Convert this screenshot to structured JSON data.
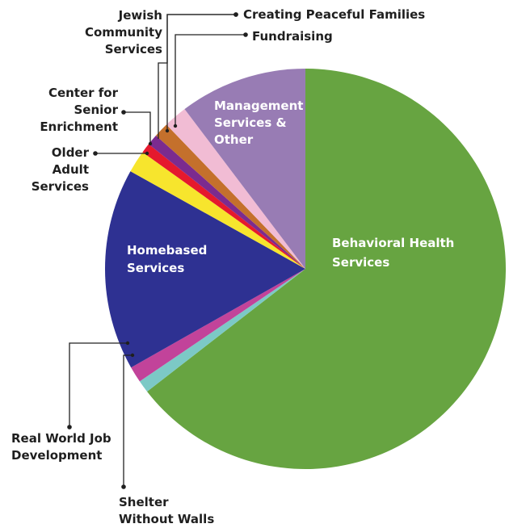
{
  "chart_data": {
    "type": "pie",
    "title": "",
    "slices": [
      {
        "label": "Behavioral Health Services",
        "lines": [
          "Behavioral Health",
          "Services"
        ],
        "value": 64.5,
        "color": "#67a441",
        "label_style": "inside"
      },
      {
        "label": "Shelter Without Walls",
        "lines": [
          "Shelter",
          "Without Walls"
        ],
        "value": 1.0,
        "color": "#7cc9c6",
        "label_style": "callout"
      },
      {
        "label": "Real World Job Development",
        "lines": [
          "Real World Job",
          "Development"
        ],
        "value": 1.3,
        "color": "#c2439a",
        "label_style": "callout"
      },
      {
        "label": "Homebased Services",
        "lines": [
          "Homebased",
          "Services"
        ],
        "value": 16.3,
        "color": "#2e3192",
        "label_style": "inside"
      },
      {
        "label": "Older Adult Services",
        "lines": [
          "Older",
          "Adult",
          "Services"
        ],
        "value": 1.8,
        "color": "#f7e52d",
        "label_style": "callout"
      },
      {
        "label": "Center for Senior Enrichment",
        "lines": [
          "Center for",
          "Senior",
          "Enrichment"
        ],
        "value": 0.8,
        "color": "#e5192d",
        "label_style": "callout"
      },
      {
        "label": "Jewish Community Services",
        "lines": [
          "Jewish",
          "Community",
          "Services"
        ],
        "value": 0.9,
        "color": "#7b2b8f",
        "label_style": "callout"
      },
      {
        "label": "Creating Peaceful Families",
        "lines": [
          "Creating Peaceful Families"
        ],
        "value": 1.2,
        "color": "#c4702c",
        "label_style": "callout"
      },
      {
        "label": "Fundraising",
        "lines": [
          "Fundraising"
        ],
        "value": 1.9,
        "color": "#f1bcd4",
        "label_style": "callout"
      },
      {
        "label": "Management Services & Other",
        "lines": [
          "Management",
          "Services &",
          "Other"
        ],
        "value": 10.3,
        "color": "#987cb4",
        "label_style": "inside"
      }
    ],
    "start": "12 o'clock",
    "direction": "clockwise",
    "legend": "none"
  }
}
